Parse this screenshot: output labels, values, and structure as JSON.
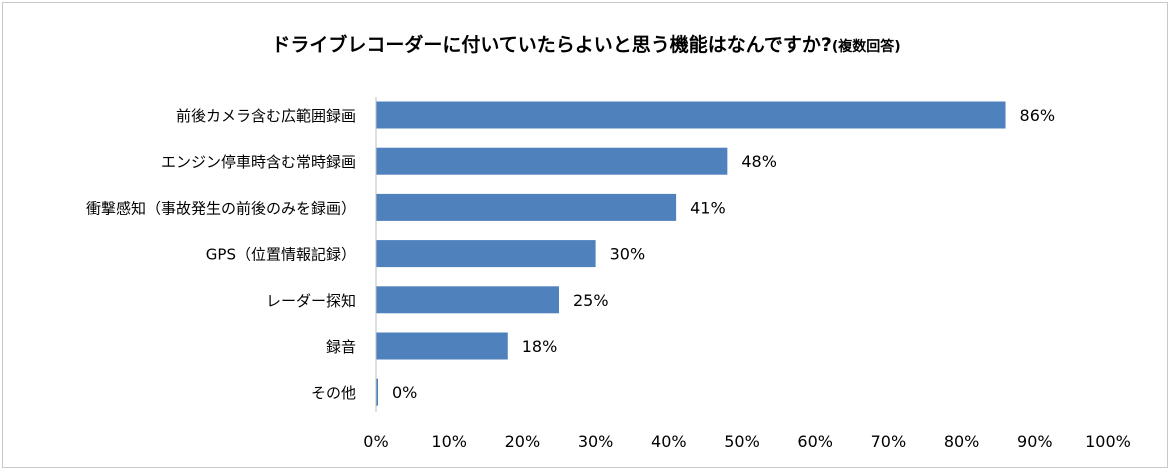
{
  "chart_data": {
    "type": "bar",
    "orientation": "horizontal",
    "title": "ドライブレコーダーに付いていたらよいと思う機能はなんですか?",
    "subtitle": "(複数回答)",
    "categories": [
      "前後カメラ含む広範囲録画",
      "エンジン停車時含む常時録画",
      "衝撃感知（事故発生の前後のみを録画）",
      "GPS（位置情報記録）",
      "レーダー探知",
      "録音",
      "その他"
    ],
    "values": [
      86,
      48,
      41,
      30,
      25,
      18,
      0
    ],
    "value_labels": [
      "86%",
      "48%",
      "41%",
      "30%",
      "25%",
      "18%",
      "0%"
    ],
    "xlim": [
      0,
      100
    ],
    "x_ticks": [
      0,
      10,
      20,
      30,
      40,
      50,
      60,
      70,
      80,
      90,
      100
    ],
    "x_tick_labels": [
      "0%",
      "10%",
      "20%",
      "30%",
      "40%",
      "50%",
      "60%",
      "70%",
      "80%",
      "90%",
      "100%"
    ],
    "bar_color": "#4f81bd",
    "grid": false,
    "legend": "none"
  }
}
